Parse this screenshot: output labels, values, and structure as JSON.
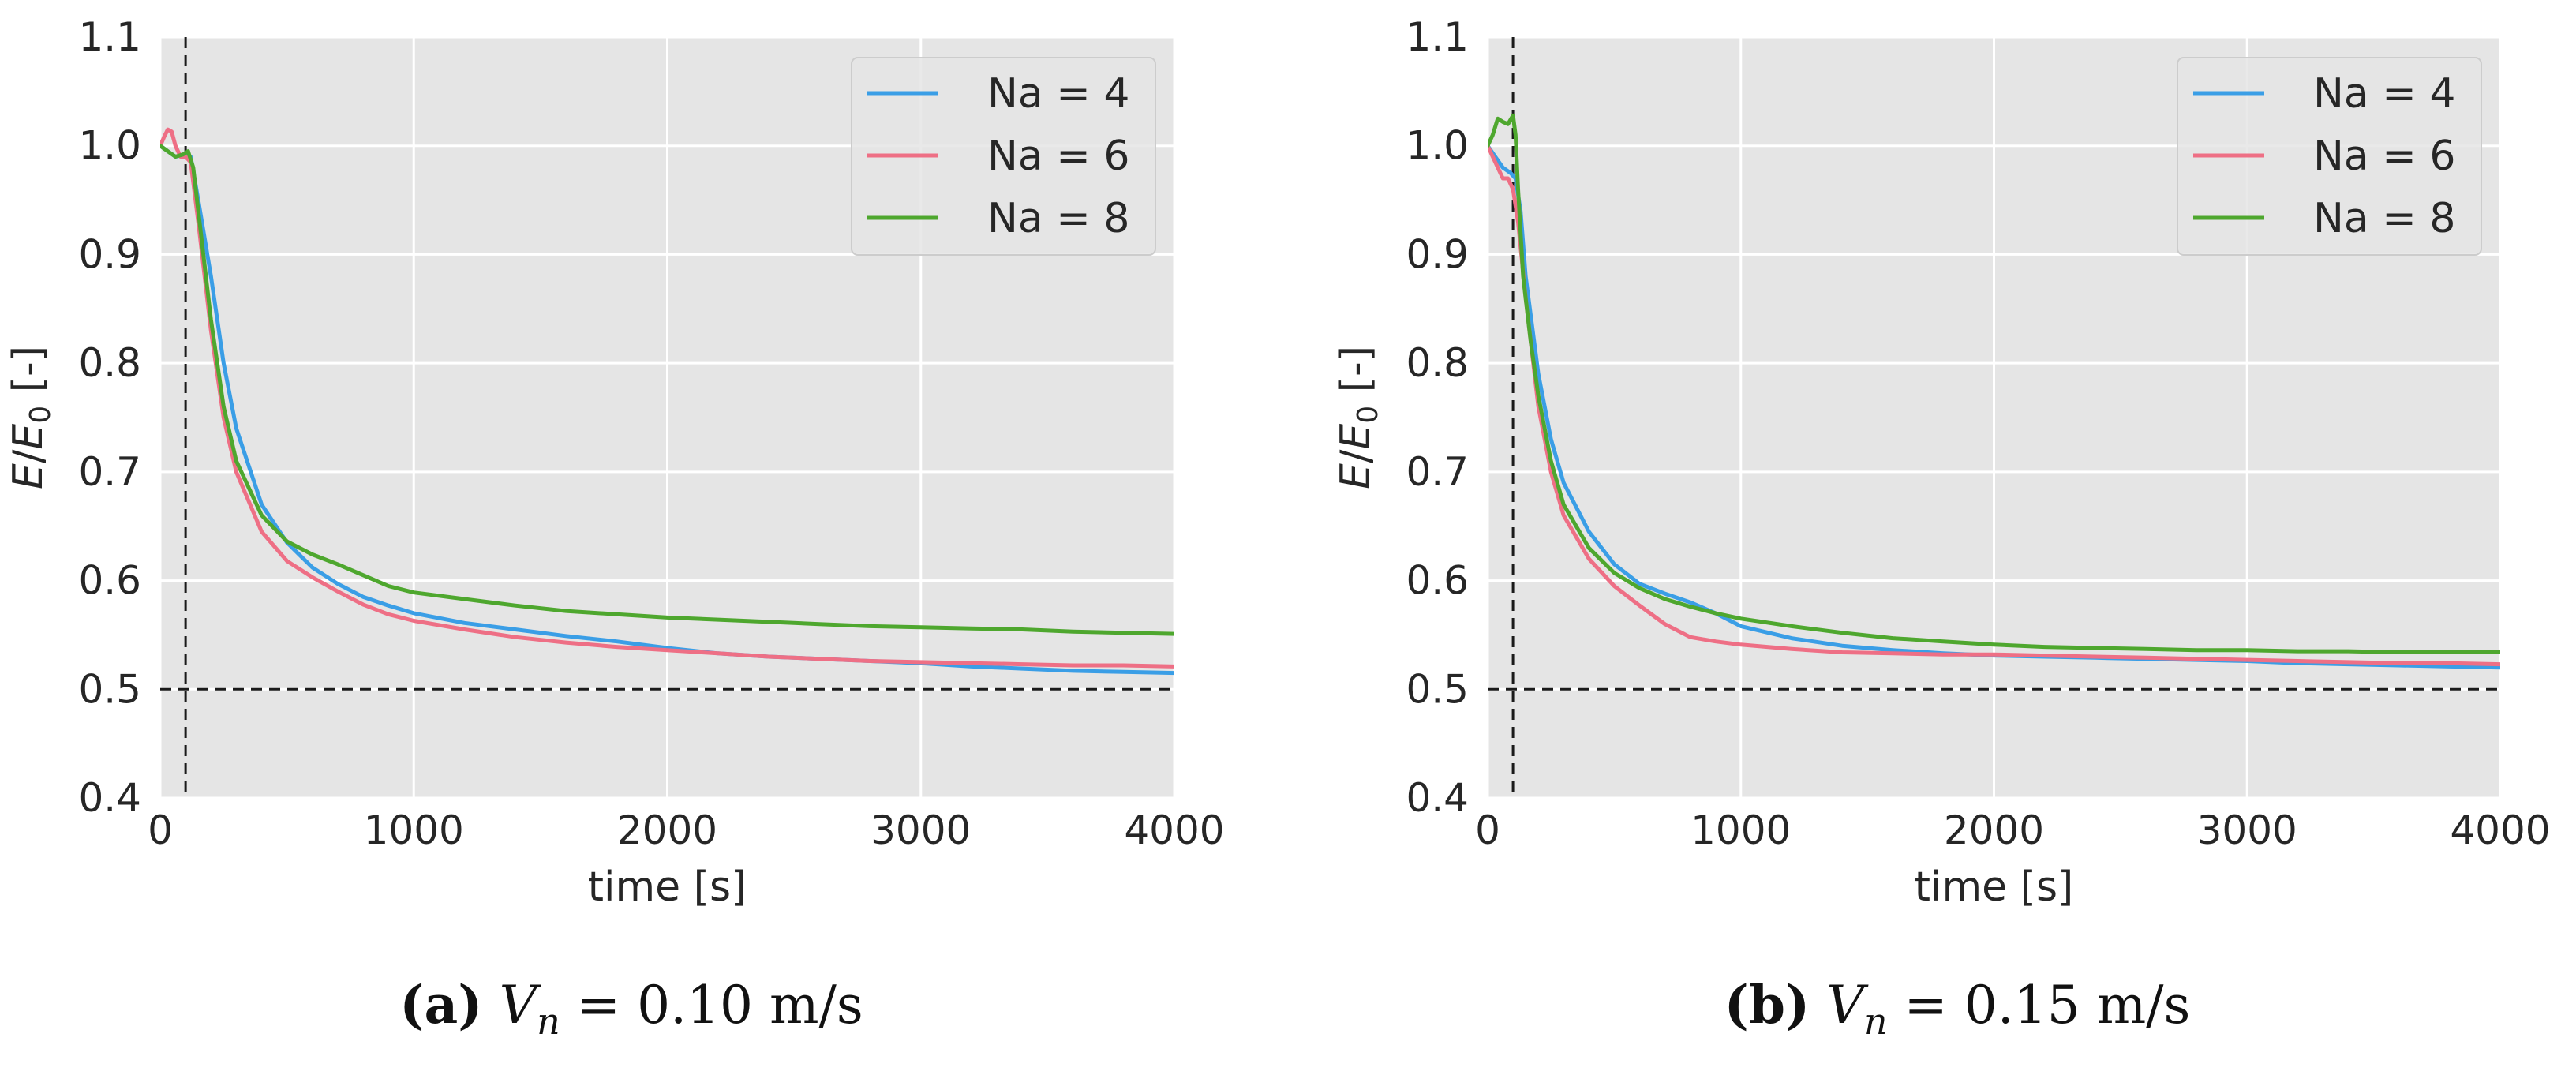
{
  "chart_data": [
    {
      "type": "line",
      "panel_label": "(a)",
      "caption_var": "V",
      "caption_sub": "n",
      "caption_rest": " = 0.10 m/s",
      "xlabel": "time [s]",
      "ylabel_var": "E",
      "ylabel_den": "E",
      "ylabel_sub": "0",
      "ylabel_unit": " [-]",
      "xlim": [
        0,
        4000
      ],
      "ylim": [
        0.4,
        1.1
      ],
      "xticks": [
        0,
        1000,
        2000,
        3000,
        4000
      ],
      "xtick_labels": [
        "0",
        "1000",
        "2000",
        "3000",
        "4000"
      ],
      "yticks": [
        0.4,
        0.5,
        0.6,
        0.7,
        0.8,
        0.9,
        1.0,
        1.1
      ],
      "ytick_labels": [
        "0.4",
        "0.5",
        "0.6",
        "0.7",
        "0.8",
        "0.9",
        "1.0",
        "1.1"
      ],
      "grid": true,
      "legend_position": "top-right",
      "reference_lines": {
        "vertical_x": 100,
        "horizontal_y": 0.5
      },
      "series": [
        {
          "name": "Na = 4",
          "color": "#3a9ee6",
          "x": [
            0,
            30,
            60,
            100,
            120,
            150,
            200,
            250,
            300,
            400,
            500,
            600,
            700,
            800,
            900,
            1000,
            1200,
            1400,
            1600,
            1800,
            2000,
            2200,
            2400,
            2600,
            2800,
            3000,
            3200,
            3400,
            3600,
            3800,
            4000
          ],
          "y": [
            1.0,
            0.995,
            0.99,
            0.992,
            0.99,
            0.95,
            0.88,
            0.8,
            0.74,
            0.67,
            0.635,
            0.612,
            0.597,
            0.585,
            0.577,
            0.57,
            0.561,
            0.555,
            0.549,
            0.544,
            0.538,
            0.533,
            0.53,
            0.528,
            0.526,
            0.524,
            0.521,
            0.519,
            0.517,
            0.516,
            0.515
          ]
        },
        {
          "name": "Na = 6",
          "color": "#ee6f85",
          "x": [
            0,
            15,
            30,
            45,
            60,
            80,
            100,
            120,
            150,
            200,
            250,
            300,
            400,
            500,
            600,
            700,
            800,
            900,
            1000,
            1200,
            1400,
            1600,
            1800,
            2000,
            2200,
            2400,
            2600,
            2800,
            3000,
            3200,
            3400,
            3600,
            3800,
            4000
          ],
          "y": [
            1.0,
            1.008,
            1.015,
            1.013,
            1.0,
            0.99,
            0.99,
            0.985,
            0.93,
            0.83,
            0.75,
            0.7,
            0.645,
            0.618,
            0.603,
            0.59,
            0.578,
            0.569,
            0.563,
            0.555,
            0.548,
            0.543,
            0.539,
            0.536,
            0.533,
            0.53,
            0.528,
            0.526,
            0.525,
            0.524,
            0.523,
            0.522,
            0.522,
            0.521
          ]
        },
        {
          "name": "Na = 8",
          "color": "#4ea72e",
          "x": [
            0,
            30,
            60,
            90,
            110,
            130,
            150,
            200,
            250,
            300,
            400,
            500,
            600,
            700,
            800,
            900,
            1000,
            1200,
            1400,
            1600,
            1800,
            2000,
            2200,
            2400,
            2600,
            2800,
            3000,
            3200,
            3400,
            3600,
            3800,
            4000
          ],
          "y": [
            1.0,
            0.995,
            0.99,
            0.992,
            0.995,
            0.98,
            0.94,
            0.84,
            0.76,
            0.71,
            0.66,
            0.636,
            0.624,
            0.615,
            0.605,
            0.595,
            0.589,
            0.583,
            0.577,
            0.572,
            0.569,
            0.566,
            0.564,
            0.562,
            0.56,
            0.558,
            0.557,
            0.556,
            0.555,
            0.553,
            0.552,
            0.551
          ]
        }
      ]
    },
    {
      "type": "line",
      "panel_label": "(b)",
      "caption_var": "V",
      "caption_sub": "n",
      "caption_rest": " = 0.15 m/s",
      "xlabel": "time [s]",
      "ylabel_var": "E",
      "ylabel_den": "E",
      "ylabel_sub": "0",
      "ylabel_unit": " [-]",
      "xlim": [
        0,
        4000
      ],
      "ylim": [
        0.4,
        1.1
      ],
      "xticks": [
        0,
        1000,
        2000,
        3000,
        4000
      ],
      "xtick_labels": [
        "0",
        "1000",
        "2000",
        "3000",
        "4000"
      ],
      "yticks": [
        0.4,
        0.5,
        0.6,
        0.7,
        0.8,
        0.9,
        1.0,
        1.1
      ],
      "ytick_labels": [
        "0.4",
        "0.5",
        "0.6",
        "0.7",
        "0.8",
        "0.9",
        "1.0",
        "1.1"
      ],
      "grid": true,
      "legend_position": "top-right",
      "reference_lines": {
        "vertical_x": 100,
        "horizontal_y": 0.5
      },
      "series": [
        {
          "name": "Na = 4",
          "color": "#3a9ee6",
          "x": [
            0,
            30,
            60,
            90,
            110,
            130,
            150,
            200,
            250,
            300,
            400,
            500,
            600,
            700,
            800,
            900,
            1000,
            1200,
            1400,
            1600,
            1800,
            2000,
            2200,
            2400,
            2600,
            2800,
            3000,
            3200,
            3400,
            3600,
            3800,
            4000
          ],
          "y": [
            1.0,
            0.99,
            0.98,
            0.975,
            0.97,
            0.94,
            0.88,
            0.79,
            0.73,
            0.69,
            0.645,
            0.615,
            0.597,
            0.588,
            0.58,
            0.57,
            0.558,
            0.547,
            0.54,
            0.536,
            0.533,
            0.531,
            0.53,
            0.529,
            0.528,
            0.527,
            0.526,
            0.524,
            0.523,
            0.522,
            0.521,
            0.52
          ]
        },
        {
          "name": "Na = 6",
          "color": "#ee6f85",
          "x": [
            0,
            20,
            40,
            60,
            80,
            100,
            120,
            150,
            200,
            250,
            300,
            400,
            500,
            600,
            700,
            800,
            900,
            1000,
            1200,
            1400,
            1600,
            1800,
            2000,
            2200,
            2400,
            2600,
            2800,
            3000,
            3200,
            3400,
            3600,
            3800,
            4000
          ],
          "y": [
            1.0,
            0.99,
            0.98,
            0.97,
            0.97,
            0.96,
            0.93,
            0.86,
            0.76,
            0.7,
            0.66,
            0.62,
            0.595,
            0.577,
            0.56,
            0.548,
            0.544,
            0.541,
            0.537,
            0.534,
            0.533,
            0.532,
            0.532,
            0.531,
            0.53,
            0.529,
            0.528,
            0.527,
            0.526,
            0.525,
            0.524,
            0.524,
            0.523
          ]
        },
        {
          "name": "Na = 8",
          "color": "#4ea72e",
          "x": [
            0,
            20,
            40,
            60,
            80,
            100,
            110,
            120,
            140,
            170,
            200,
            250,
            300,
            400,
            500,
            600,
            700,
            800,
            900,
            1000,
            1200,
            1400,
            1600,
            1800,
            2000,
            2200,
            2400,
            2600,
            2800,
            3000,
            3200,
            3400,
            3600,
            3800,
            4000
          ],
          "y": [
            1.0,
            1.01,
            1.025,
            1.022,
            1.02,
            1.028,
            1.01,
            0.96,
            0.88,
            0.82,
            0.77,
            0.71,
            0.67,
            0.63,
            0.607,
            0.593,
            0.583,
            0.576,
            0.57,
            0.565,
            0.558,
            0.552,
            0.547,
            0.544,
            0.541,
            0.539,
            0.538,
            0.537,
            0.536,
            0.536,
            0.535,
            0.535,
            0.534,
            0.534,
            0.534
          ]
        }
      ]
    }
  ]
}
